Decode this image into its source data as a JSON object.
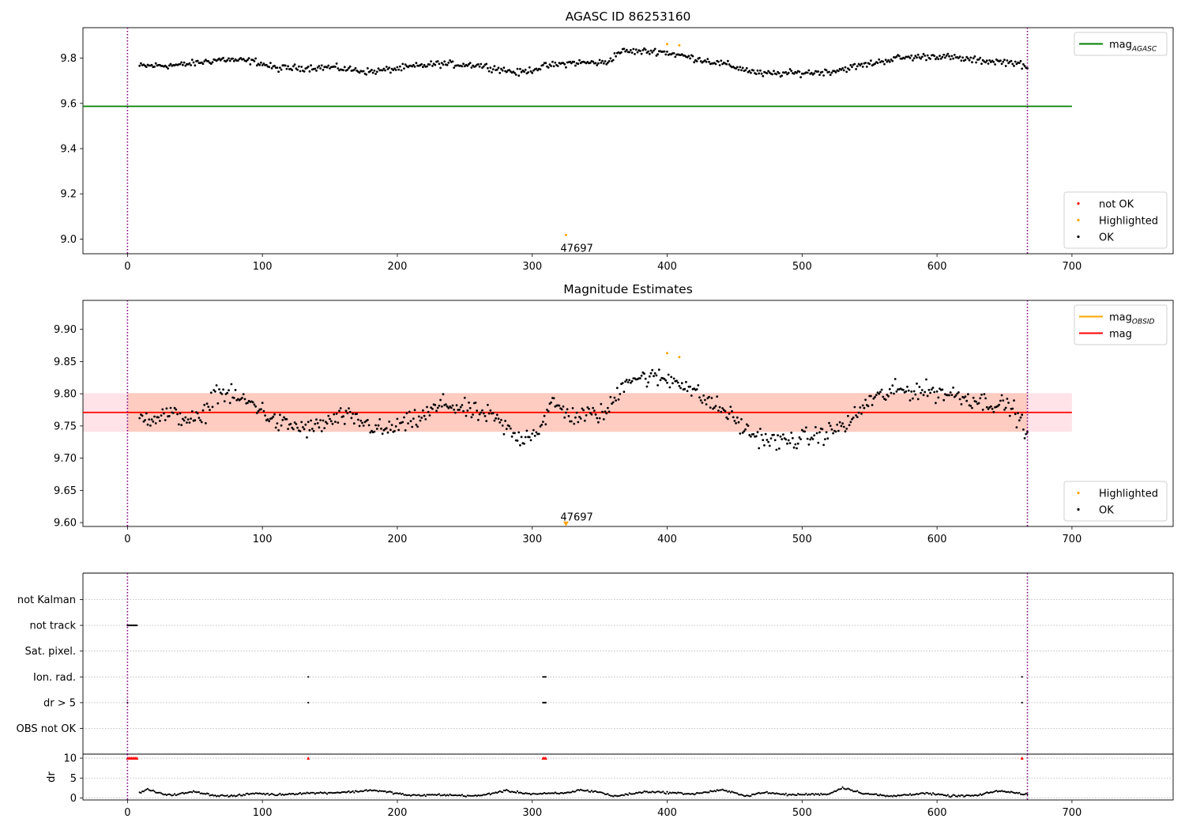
{
  "chart_data": [
    {
      "type": "scatter",
      "title": "AGASC ID 86253160",
      "xlim": [
        -33,
        775
      ],
      "ylim": [
        8.935,
        9.935
      ],
      "xticks": [
        0,
        100,
        200,
        300,
        400,
        500,
        600,
        700
      ],
      "yticks": [
        9.0,
        9.2,
        9.4,
        9.6,
        9.8
      ],
      "ytick_labels": [
        "9.0",
        "9.2",
        "9.4",
        "9.6",
        "9.8"
      ],
      "vlines": [
        0,
        667
      ],
      "series": [
        {
          "name": "mag",
          "sub": "AGASC",
          "type": "hline",
          "y": 9.587,
          "x_range": [
            -33,
            700
          ],
          "color": "#008000"
        },
        {
          "name": "not OK",
          "type": "scatter",
          "color": "#ff0000",
          "points": []
        },
        {
          "name": "Highlighted",
          "type": "scatter",
          "color": "#ffa500",
          "points": [
            [
              325,
              9.018
            ],
            [
              400,
              9.862
            ],
            [
              409,
              9.857
            ]
          ]
        },
        {
          "name": "OK",
          "type": "scatter",
          "color": "#000000",
          "profile": [
            [
              10,
              9.765
            ],
            [
              40,
              9.77
            ],
            [
              70,
              9.795
            ],
            [
              95,
              9.785
            ],
            [
              110,
              9.755
            ],
            [
              150,
              9.76
            ],
            [
              180,
              9.74
            ],
            [
              230,
              9.775
            ],
            [
              260,
              9.77
            ],
            [
              290,
              9.735
            ],
            [
              310,
              9.765
            ],
            [
              330,
              9.78
            ],
            [
              355,
              9.78
            ],
            [
              365,
              9.83
            ],
            [
              395,
              9.83
            ],
            [
              420,
              9.8
            ],
            [
              445,
              9.77
            ],
            [
              470,
              9.73
            ],
            [
              500,
              9.735
            ],
            [
              520,
              9.74
            ],
            [
              550,
              9.775
            ],
            [
              570,
              9.8
            ],
            [
              600,
              9.81
            ],
            [
              630,
              9.79
            ],
            [
              660,
              9.78
            ],
            [
              667,
              9.75
            ]
          ]
        }
      ],
      "annotations": [
        {
          "text": "47697",
          "x": 333,
          "y": 8.955
        }
      ],
      "legends": [
        {
          "position": "upper right",
          "entries": [
            {
              "label": "mag",
              "sub": "AGASC",
              "color": "#008000",
              "kind": "line"
            }
          ]
        },
        {
          "position": "lower right",
          "entries": [
            {
              "label": "not OK",
              "color": "#ff0000",
              "kind": "dot"
            },
            {
              "label": "Highlighted",
              "color": "#ffa500",
              "kind": "dot"
            },
            {
              "label": "OK",
              "color": "#000000",
              "kind": "dot"
            }
          ]
        }
      ]
    },
    {
      "type": "scatter",
      "title": "Magnitude Estimates",
      "xlim": [
        -33,
        775
      ],
      "ylim": [
        9.594,
        9.945
      ],
      "xticks": [
        0,
        100,
        200,
        300,
        400,
        500,
        600,
        700
      ],
      "yticks": [
        9.6,
        9.65,
        9.7,
        9.75,
        9.8,
        9.85,
        9.9
      ],
      "ytick_labels": [
        "9.60",
        "9.65",
        "9.70",
        "9.75",
        "9.80",
        "9.85",
        "9.90"
      ],
      "vlines": [
        0,
        667
      ],
      "bands": [
        {
          "x_range": [
            -33,
            700
          ],
          "y_range": [
            9.741,
            9.801
          ],
          "color": "#ffc0cb",
          "opacity": 0.45
        },
        {
          "x_range": [
            0,
            667
          ],
          "y_range": [
            9.741,
            9.801
          ],
          "color": "#ffa07a",
          "opacity": 0.35
        }
      ],
      "series": [
        {
          "name": "mag",
          "sub": "OBSID",
          "type": "step",
          "y": 9.771,
          "x_range": [
            0,
            667
          ],
          "color": "#ffa500"
        },
        {
          "name": "mag",
          "type": "hline",
          "y": 9.771,
          "x_range": [
            -33,
            700
          ],
          "color": "#ff0000"
        },
        {
          "name": "Highlighted",
          "type": "scatter",
          "color": "#ffa500",
          "points": [
            [
              400,
              9.863
            ],
            [
              409,
              9.857
            ]
          ]
        },
        {
          "name": "OK",
          "type": "scatter",
          "color": "#000000",
          "profile": [
            [
              10,
              9.762
            ],
            [
              30,
              9.768
            ],
            [
              55,
              9.758
            ],
            [
              65,
              9.805
            ],
            [
              85,
              9.79
            ],
            [
              95,
              9.783
            ],
            [
              110,
              9.755
            ],
            [
              135,
              9.745
            ],
            [
              160,
              9.765
            ],
            [
              175,
              9.755
            ],
            [
              190,
              9.742
            ],
            [
              215,
              9.76
            ],
            [
              235,
              9.785
            ],
            [
              255,
              9.772
            ],
            [
              270,
              9.765
            ],
            [
              290,
              9.73
            ],
            [
              305,
              9.745
            ],
            [
              315,
              9.785
            ],
            [
              330,
              9.765
            ],
            [
              355,
              9.77
            ],
            [
              370,
              9.825
            ],
            [
              390,
              9.825
            ],
            [
              410,
              9.82
            ],
            [
              425,
              9.795
            ],
            [
              445,
              9.77
            ],
            [
              460,
              9.74
            ],
            [
              480,
              9.725
            ],
            [
              500,
              9.73
            ],
            [
              520,
              9.74
            ],
            [
              535,
              9.755
            ],
            [
              550,
              9.79
            ],
            [
              570,
              9.805
            ],
            [
              590,
              9.805
            ],
            [
              610,
              9.8
            ],
            [
              630,
              9.79
            ],
            [
              655,
              9.78
            ],
            [
              667,
              9.74
            ]
          ]
        }
      ],
      "annotations": [
        {
          "text": "47697",
          "x": 333,
          "y": 9.607
        }
      ],
      "markers": [
        {
          "x": 325,
          "y": 9.598,
          "shape": "triangle-down",
          "color": "#ffa500"
        }
      ],
      "legends": [
        {
          "position": "upper right",
          "entries": [
            {
              "label": "mag",
              "sub": "OBSID",
              "color": "#ffa500",
              "kind": "line"
            },
            {
              "label": "mag",
              "color": "#ff0000",
              "kind": "line"
            }
          ]
        },
        {
          "position": "lower right",
          "entries": [
            {
              "label": "Highlighted",
              "color": "#ffa500",
              "kind": "dot"
            },
            {
              "label": "OK",
              "color": "#000000",
              "kind": "dot"
            }
          ]
        }
      ]
    },
    {
      "type": "scatter",
      "title": "",
      "xlim": [
        -33,
        775
      ],
      "categories": [
        "OBS not OK",
        "dr > 5",
        "Ion. rad.",
        "Sat. pixel.",
        "not track",
        "not Kalman"
      ],
      "flag_points": [
        {
          "category": "not track",
          "x": [
            0,
            1,
            2,
            3,
            4,
            5,
            6,
            7
          ]
        },
        {
          "category": "Ion. rad.",
          "x": [
            134,
            308,
            309,
            310,
            663
          ]
        },
        {
          "category": "dr > 5",
          "x": [
            0,
            134,
            308,
            309,
            310,
            663
          ]
        }
      ],
      "vlines": [
        0,
        667
      ]
    },
    {
      "type": "scatter",
      "title": "",
      "xlim": [
        -33,
        775
      ],
      "ylim": [
        -0.5,
        11
      ],
      "xticks": [
        0,
        100,
        200,
        300,
        400,
        500,
        600,
        700
      ],
      "yticks": [
        0,
        5,
        10
      ],
      "ylabel": "dr",
      "series": [
        {
          "name": "dr",
          "color": "#000000",
          "profile": [
            [
              8,
              1.0
            ],
            [
              15,
              2.2
            ],
            [
              25,
              1.0
            ],
            [
              35,
              0.8
            ],
            [
              50,
              1.6
            ],
            [
              65,
              0.6
            ],
            [
              80,
              0.5
            ],
            [
              95,
              1.2
            ],
            [
              110,
              0.8
            ],
            [
              130,
              1.2
            ],
            [
              150,
              1.3
            ],
            [
              170,
              1.6
            ],
            [
              180,
              2.0
            ],
            [
              195,
              1.4
            ],
            [
              210,
              0.6
            ],
            [
              230,
              0.8
            ],
            [
              260,
              0.5
            ],
            [
              280,
              1.8
            ],
            [
              300,
              1.0
            ],
            [
              325,
              1.2
            ],
            [
              335,
              2.0
            ],
            [
              350,
              1.5
            ],
            [
              360,
              0.4
            ],
            [
              385,
              1.6
            ],
            [
              420,
              1.0
            ],
            [
              440,
              2.0
            ],
            [
              460,
              0.5
            ],
            [
              470,
              1.4
            ],
            [
              490,
              0.8
            ],
            [
              520,
              1.0
            ],
            [
              530,
              2.6
            ],
            [
              545,
              1.2
            ],
            [
              565,
              0.4
            ],
            [
              590,
              1.2
            ],
            [
              610,
              0.5
            ],
            [
              630,
              0.6
            ],
            [
              645,
              1.8
            ],
            [
              660,
              1.2
            ],
            [
              667,
              0.9
            ]
          ]
        },
        {
          "name": "dr > 5",
          "color": "#ff0000",
          "marker": "triangle-up",
          "y": 10,
          "x": [
            0,
            1,
            2,
            3,
            4,
            5,
            6,
            7,
            134,
            308,
            309,
            310,
            663
          ]
        }
      ],
      "vlines": [
        0,
        667
      ]
    }
  ]
}
